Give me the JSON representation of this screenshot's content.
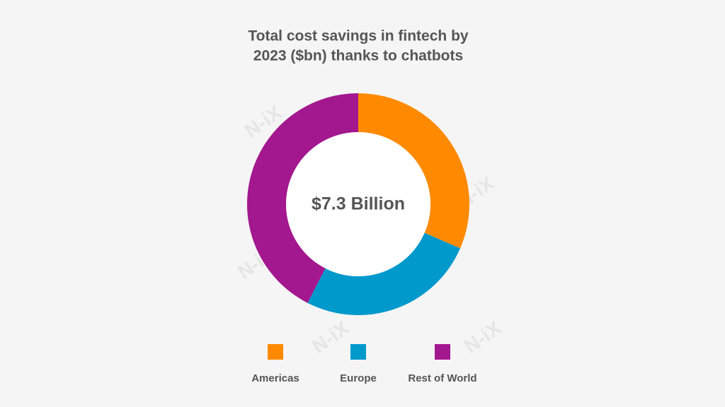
{
  "chart_data": {
    "type": "donut",
    "title": [
      "Total cost savings in fintech by",
      "2023 ($bn) thanks to chatbots"
    ],
    "center_label": "$7.3 Billion",
    "watermark": "N-iX",
    "categories": [
      "Americas",
      "Europe",
      "Rest of World"
    ],
    "values": [
      2.3,
      1.9,
      3.1
    ],
    "colors": [
      "#ff8a00",
      "#0099cc",
      "#a3178f"
    ]
  }
}
